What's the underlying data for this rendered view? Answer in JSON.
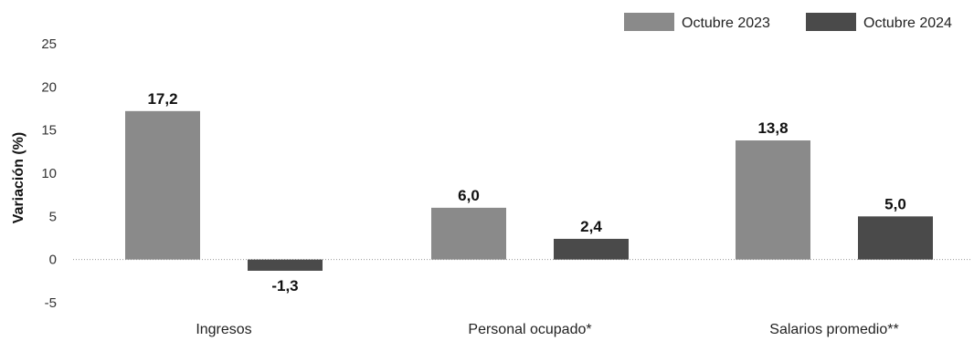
{
  "chart_data": {
    "type": "bar",
    "ylabel": "Variación (%)",
    "ylim": [
      -5,
      25
    ],
    "yticks": [
      -5,
      0,
      5,
      10,
      15,
      20,
      25
    ],
    "categories": [
      "Ingresos",
      "Personal ocupado*",
      "Salarios promedio**"
    ],
    "series": [
      {
        "name": "Octubre 2023",
        "values": [
          17.2,
          6.0,
          13.8
        ],
        "labels": [
          "17,2",
          "6,0",
          "13,8"
        ],
        "color": "#8a8a8a"
      },
      {
        "name": "Octubre 2024",
        "values": [
          -1.3,
          2.4,
          5.0
        ],
        "labels": [
          "-1,3",
          "2,4",
          "5,0"
        ],
        "color": "#4a4a4a"
      }
    ],
    "legend_position": "top-right",
    "grid": false
  }
}
